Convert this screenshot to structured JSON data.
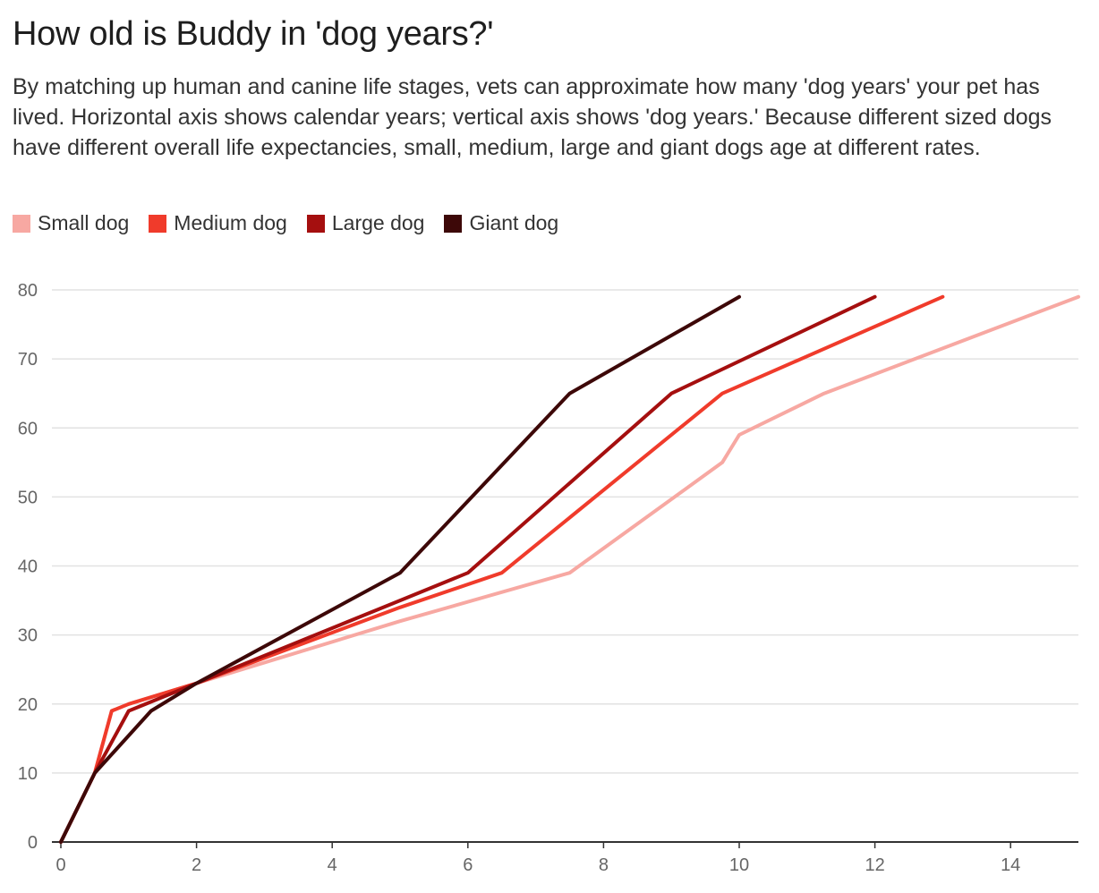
{
  "header": {
    "title": "How old is Buddy in 'dog years?'",
    "subtitle": "By matching up human and canine life stages, vets can approximate how many 'dog years' your pet has lived. Horizontal axis shows calendar years; vertical axis shows 'dog years.' Because different sized dogs have different overall life expectancies, small, medium, large and giant dogs age at different rates."
  },
  "chart_data": {
    "type": "line",
    "title": "How old is Buddy in 'dog years?'",
    "xlabel": "",
    "ylabel": "",
    "xlim": [
      0,
      15
    ],
    "ylim": [
      0,
      80
    ],
    "x_ticks": [
      0,
      2,
      4,
      6,
      8,
      10,
      12,
      14
    ],
    "y_ticks": [
      0,
      10,
      20,
      30,
      40,
      50,
      60,
      70,
      80
    ],
    "grid": "horizontal",
    "legend_position": "top-left",
    "series": [
      {
        "name": "Small dog",
        "color": "#f7a8a2",
        "points": [
          [
            0,
            0
          ],
          [
            0.5,
            10
          ],
          [
            0.75,
            19
          ],
          [
            1,
            20
          ],
          [
            2,
            23
          ],
          [
            5,
            32
          ],
          [
            7.5,
            39
          ],
          [
            9.75,
            55
          ],
          [
            10,
            59
          ],
          [
            11.25,
            65
          ],
          [
            15,
            79
          ]
        ]
      },
      {
        "name": "Medium dog",
        "color": "#f03b2b",
        "points": [
          [
            0,
            0
          ],
          [
            0.5,
            10
          ],
          [
            0.75,
            19
          ],
          [
            1,
            20
          ],
          [
            2,
            23
          ],
          [
            5,
            34
          ],
          [
            6.5,
            39
          ],
          [
            9.75,
            65
          ],
          [
            13,
            79
          ]
        ]
      },
      {
        "name": "Large dog",
        "color": "#a50f0f",
        "points": [
          [
            0,
            0
          ],
          [
            0.5,
            10
          ],
          [
            1,
            19
          ],
          [
            2,
            23
          ],
          [
            5,
            35
          ],
          [
            6,
            39
          ],
          [
            9,
            65
          ],
          [
            12,
            79
          ]
        ]
      },
      {
        "name": "Giant dog",
        "color": "#3d0808",
        "points": [
          [
            0,
            0
          ],
          [
            0.5,
            10
          ],
          [
            1.33,
            19
          ],
          [
            2,
            23
          ],
          [
            5,
            39
          ],
          [
            7.5,
            65
          ],
          [
            10,
            79
          ]
        ]
      }
    ]
  }
}
